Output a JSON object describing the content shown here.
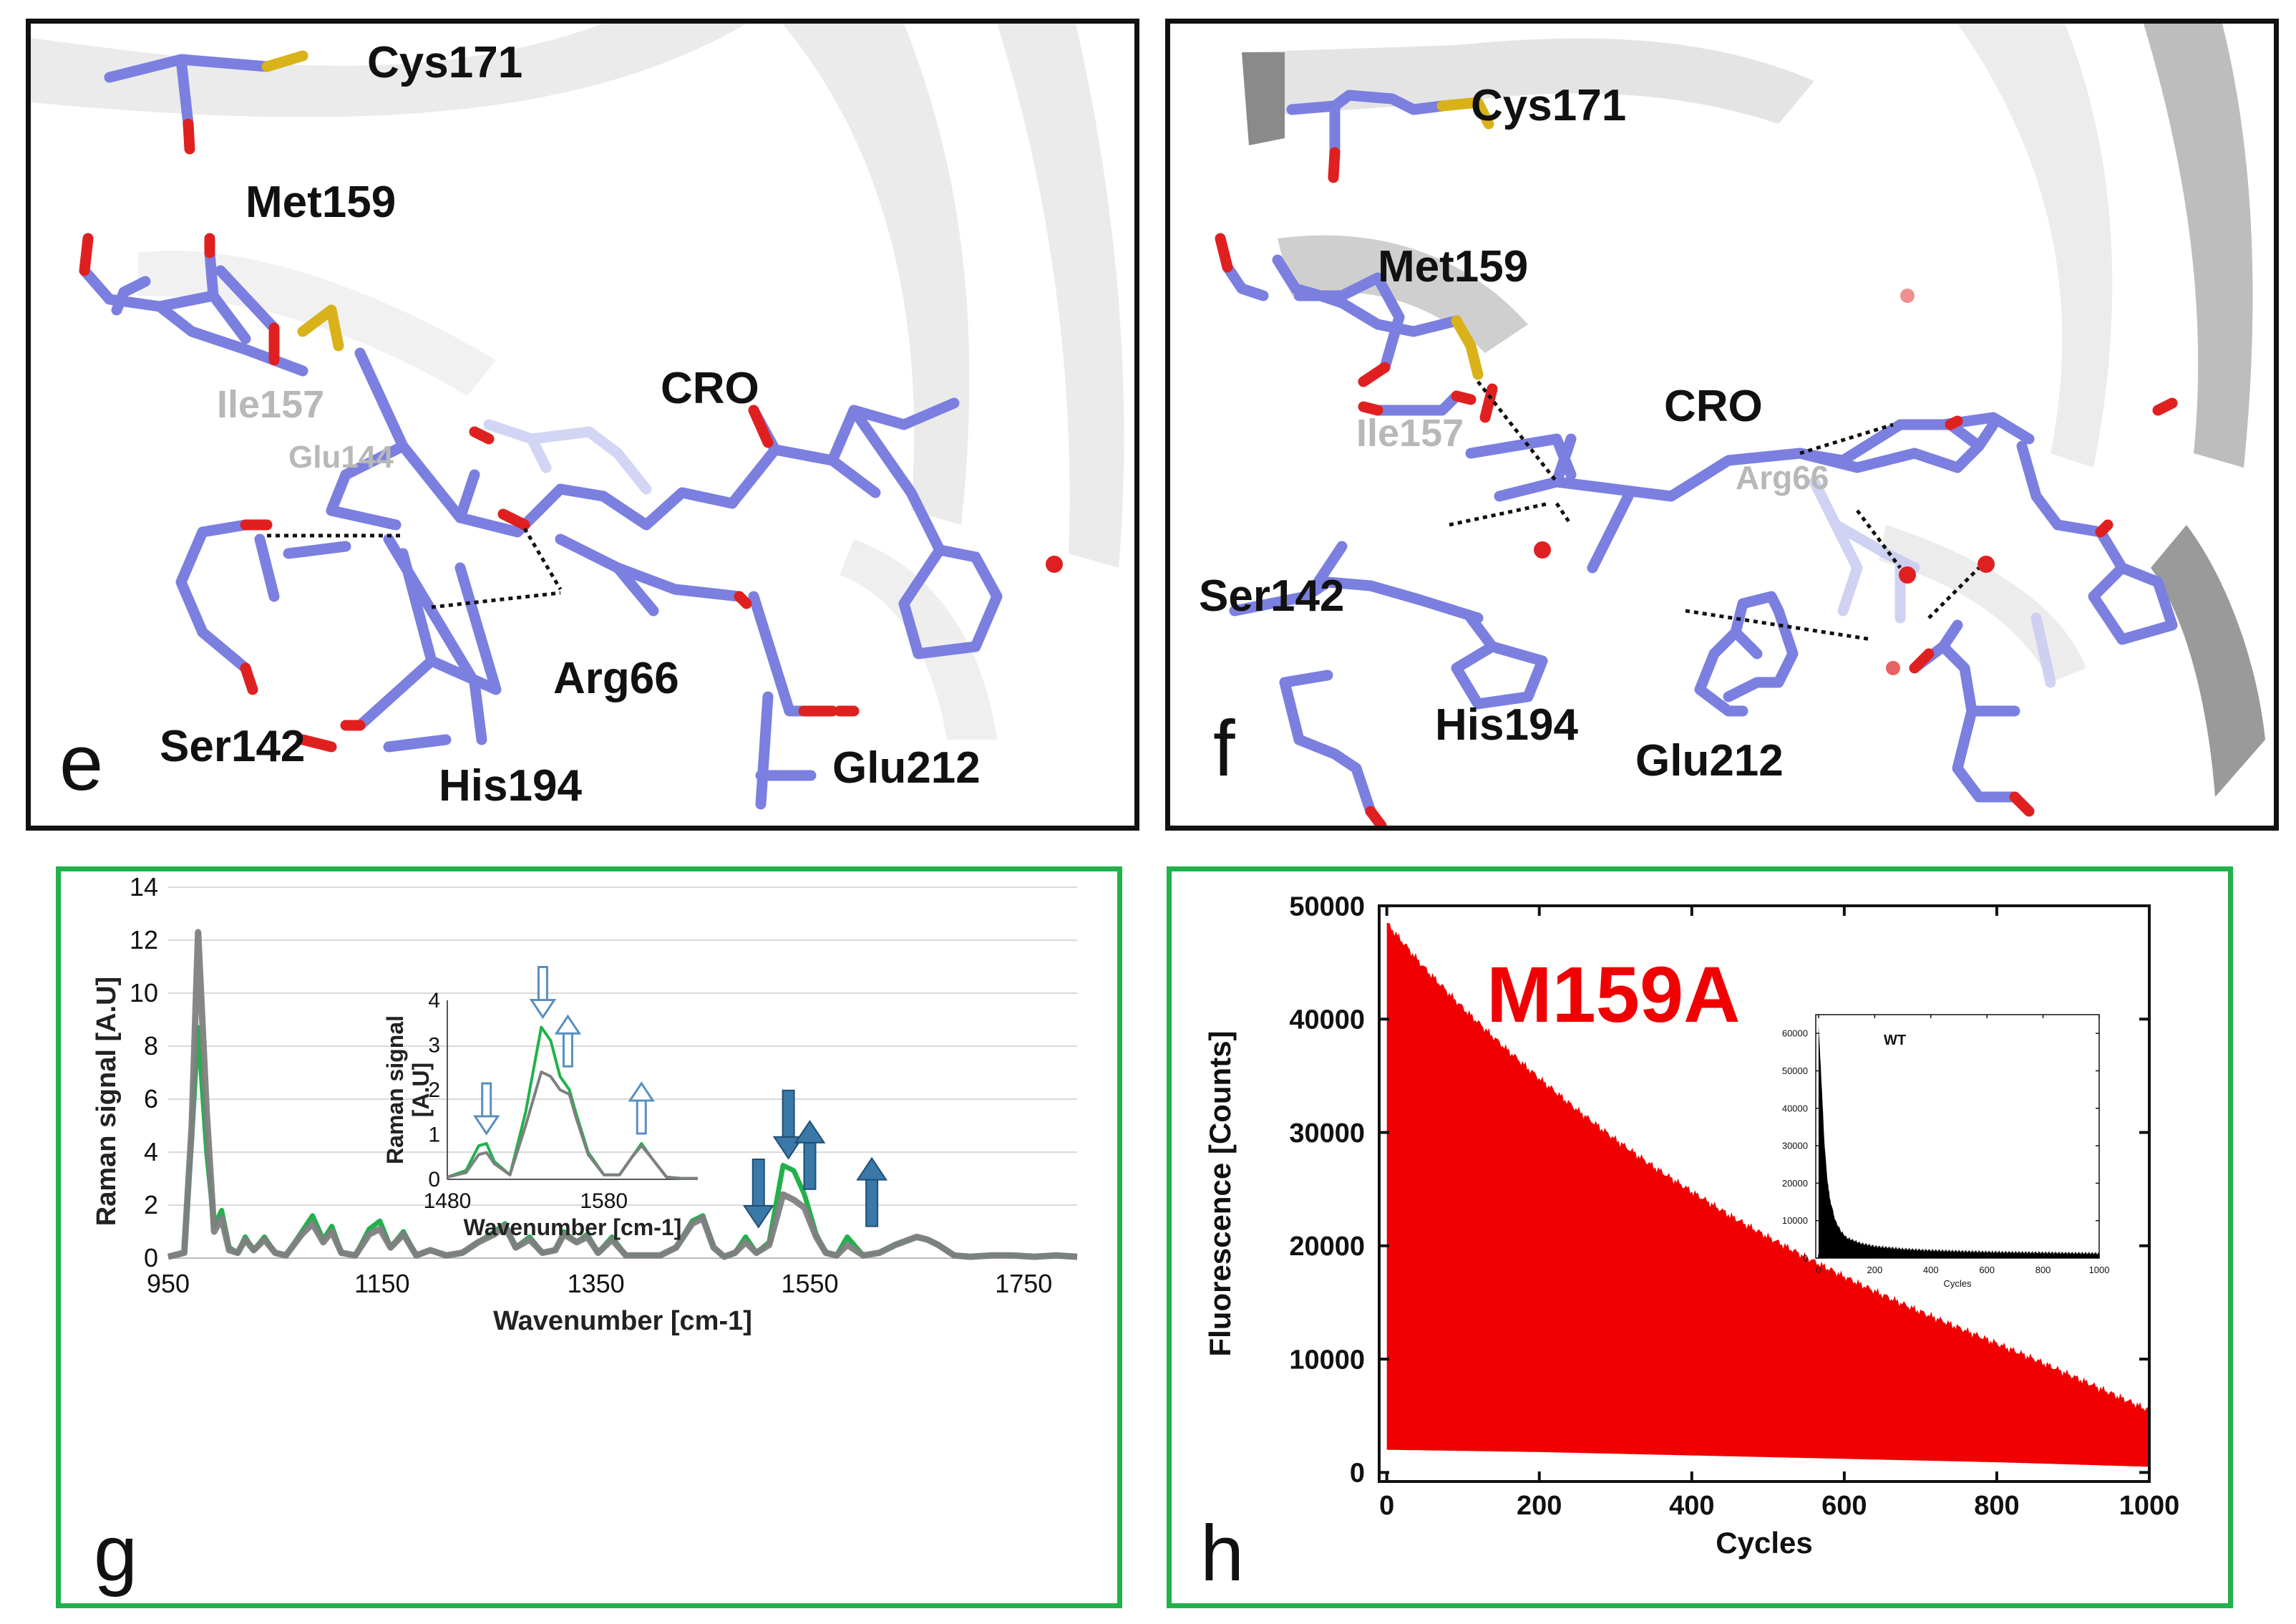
{
  "panels": {
    "e": {
      "letter": "e",
      "labels": {
        "cys171": "Cys171",
        "met159": "Met159",
        "ile157": "Ile157",
        "glu144": "Glu144",
        "cro": "CRO",
        "arg66": "Arg66",
        "ser142": "Ser142",
        "his194": "His194",
        "glu212": "Glu212"
      }
    },
    "f": {
      "letter": "f",
      "labels": {
        "cys171": "Cys171",
        "met159": "Met159",
        "ile157": "Ile157",
        "cro": "CRO",
        "arg66": "Arg66",
        "ser142": "Ser142",
        "his194": "His194",
        "glu212": "Glu212"
      }
    },
    "g": {
      "letter": "g"
    },
    "h": {
      "letter": "h"
    }
  },
  "colors": {
    "stick": "#7b7fe0",
    "oxygen": "#e02020",
    "sulfur": "#d9b21a",
    "green": "#22b14c",
    "gray": "#7f7f7f",
    "arrow": "#3a78a8",
    "red": "#f00000"
  },
  "chart_data": [
    {
      "id": "g-main",
      "type": "line",
      "xlabel": "Wavenumber [cm-1]",
      "ylabel": "Raman signal [A.U]",
      "xlim": [
        950,
        1800
      ],
      "ylim": [
        0,
        14
      ],
      "xticks": [
        950,
        1150,
        1350,
        1550,
        1750
      ],
      "yticks": [
        0,
        2,
        4,
        6,
        8,
        10,
        12,
        14
      ],
      "series": [
        {
          "name": "green",
          "color": "#22b14c",
          "x": [
            950,
            965,
            972,
            978,
            986,
            993,
            1000,
            1007,
            1015,
            1022,
            1030,
            1040,
            1050,
            1060,
            1075,
            1085,
            1095,
            1103,
            1112,
            1125,
            1138,
            1148,
            1158,
            1170,
            1182,
            1195,
            1210,
            1225,
            1240,
            1255,
            1265,
            1275,
            1288,
            1300,
            1312,
            1320,
            1332,
            1342,
            1352,
            1365,
            1378,
            1395,
            1410,
            1425,
            1440,
            1450,
            1460,
            1470,
            1480,
            1490,
            1500,
            1512,
            1525,
            1535,
            1545,
            1556,
            1565,
            1575,
            1585,
            1600,
            1615,
            1630,
            1650,
            1660,
            1670,
            1685,
            1700,
            1720,
            1740,
            1760,
            1780,
            1800
          ],
          "y": [
            0.05,
            0.2,
            4.5,
            8.7,
            4.0,
            1.2,
            1.8,
            0.4,
            0.2,
            0.8,
            0.3,
            0.8,
            0.2,
            0.1,
            1.0,
            1.6,
            0.7,
            1.2,
            0.2,
            0.1,
            1.1,
            1.4,
            0.4,
            1.0,
            0.1,
            0.3,
            0.1,
            0.2,
            0.6,
            1.0,
            1.3,
            0.4,
            0.8,
            0.2,
            0.3,
            1.0,
            0.6,
            0.9,
            0.2,
            0.8,
            0.1,
            0.1,
            0.1,
            0.4,
            1.4,
            1.6,
            0.4,
            0.05,
            0.2,
            0.8,
            0.2,
            0.6,
            3.5,
            3.3,
            2.4,
            0.9,
            0.2,
            0.1,
            0.8,
            0.1,
            0.2,
            0.5,
            0.8,
            0.7,
            0.5,
            0.1,
            0.05,
            0.1,
            0.1,
            0.05,
            0.1,
            0.05
          ]
        },
        {
          "name": "gray",
          "color": "#7f7f7f",
          "x": [
            950,
            965,
            972,
            978,
            986,
            993,
            1000,
            1007,
            1015,
            1022,
            1030,
            1040,
            1050,
            1060,
            1075,
            1085,
            1095,
            1103,
            1112,
            1125,
            1138,
            1148,
            1158,
            1170,
            1182,
            1195,
            1210,
            1225,
            1240,
            1255,
            1265,
            1275,
            1288,
            1300,
            1312,
            1320,
            1332,
            1342,
            1352,
            1365,
            1378,
            1395,
            1410,
            1425,
            1440,
            1450,
            1460,
            1470,
            1480,
            1490,
            1500,
            1512,
            1525,
            1535,
            1545,
            1556,
            1565,
            1575,
            1585,
            1600,
            1615,
            1630,
            1650,
            1660,
            1670,
            1685,
            1700,
            1720,
            1740,
            1760,
            1780,
            1800
          ],
          "y": [
            0.05,
            0.2,
            5.0,
            12.3,
            5.5,
            1.0,
            1.5,
            0.3,
            0.2,
            0.7,
            0.3,
            0.7,
            0.2,
            0.1,
            0.9,
            1.3,
            0.6,
            1.0,
            0.2,
            0.1,
            0.9,
            1.1,
            0.4,
            0.9,
            0.1,
            0.3,
            0.1,
            0.2,
            0.6,
            0.9,
            1.2,
            0.4,
            0.7,
            0.2,
            0.3,
            0.9,
            0.6,
            0.8,
            0.2,
            0.7,
            0.1,
            0.1,
            0.1,
            0.4,
            1.3,
            1.5,
            0.4,
            0.05,
            0.2,
            0.6,
            0.2,
            0.5,
            2.4,
            2.2,
            1.9,
            0.8,
            0.2,
            0.1,
            0.5,
            0.1,
            0.2,
            0.5,
            0.8,
            0.7,
            0.5,
            0.1,
            0.05,
            0.1,
            0.1,
            0.05,
            0.1,
            0.05
          ]
        }
      ],
      "annotations": [
        {
          "x": 1502,
          "dir": "down",
          "style": "filled"
        },
        {
          "x": 1530,
          "dir": "down",
          "style": "filled"
        },
        {
          "x": 1550,
          "dir": "up",
          "style": "filled"
        },
        {
          "x": 1608,
          "dir": "up",
          "style": "filled"
        }
      ]
    },
    {
      "id": "g-inset",
      "type": "line",
      "xlabel": "Wavenumber [cm-1]",
      "ylabel": "Raman signal [A.U]",
      "xlim": [
        1480,
        1640
      ],
      "ylim": [
        0,
        4
      ],
      "xticks": [
        1480,
        1580
      ],
      "yticks": [
        0,
        1,
        2,
        3,
        4
      ],
      "series": [
        {
          "name": "green",
          "color": "#22b14c",
          "x": [
            1480,
            1492,
            1500,
            1505,
            1510,
            1520,
            1530,
            1540,
            1546,
            1552,
            1558,
            1562,
            1570,
            1580,
            1590,
            1598,
            1604,
            1610,
            1620,
            1630,
            1640
          ],
          "y": [
            0.05,
            0.2,
            0.75,
            0.8,
            0.4,
            0.1,
            1.5,
            3.4,
            3.1,
            2.3,
            2.0,
            1.5,
            0.6,
            0.1,
            0.1,
            0.5,
            0.8,
            0.5,
            0.05,
            0.02,
            0.02
          ]
        },
        {
          "name": "gray",
          "color": "#7f7f7f",
          "x": [
            1480,
            1492,
            1500,
            1505,
            1510,
            1520,
            1530,
            1540,
            1546,
            1552,
            1558,
            1562,
            1570,
            1580,
            1590,
            1598,
            1604,
            1610,
            1620,
            1630,
            1640
          ],
          "y": [
            0.05,
            0.15,
            0.55,
            0.6,
            0.35,
            0.1,
            1.2,
            2.4,
            2.3,
            2.0,
            1.9,
            1.4,
            0.55,
            0.1,
            0.1,
            0.5,
            0.75,
            0.5,
            0.05,
            0.02,
            0.02
          ]
        }
      ],
      "annotations": [
        {
          "x": 1505,
          "dir": "down",
          "style": "hollow"
        },
        {
          "x": 1541,
          "dir": "down",
          "style": "hollow"
        },
        {
          "x": 1557,
          "dir": "up",
          "style": "hollow"
        },
        {
          "x": 1604,
          "dir": "up",
          "style": "hollow"
        }
      ]
    },
    {
      "id": "h-main",
      "type": "area",
      "title": "M159A",
      "xlabel": "Cycles",
      "ylabel": "Fluorescence [Counts]",
      "xlim": [
        -10,
        1000
      ],
      "ylim": [
        -800,
        50000
      ],
      "xticks": [
        0,
        200,
        400,
        600,
        800,
        1000
      ],
      "yticks": [
        0,
        10000,
        20000,
        30000,
        40000,
        50000
      ],
      "color": "#f00000",
      "upper_envelope": {
        "x": [
          0,
          50,
          100,
          150,
          200,
          250,
          300,
          350,
          400,
          450,
          500,
          550,
          600,
          650,
          700,
          750,
          800,
          850,
          900,
          950,
          1000
        ],
        "y": [
          48500,
          44500,
          41000,
          37800,
          34800,
          32000,
          29400,
          27000,
          24800,
          22700,
          20800,
          19000,
          17300,
          15700,
          14200,
          12800,
          11400,
          10000,
          8500,
          7000,
          5500
        ]
      },
      "lower_envelope": {
        "x": [
          0,
          200,
          400,
          600,
          800,
          1000
        ],
        "y": [
          2000,
          1800,
          1500,
          1200,
          900,
          500
        ]
      }
    },
    {
      "id": "h-inset",
      "type": "area",
      "title": "WT",
      "xlabel": "Cycles",
      "ylabel": "",
      "xlim": [
        -10,
        1000
      ],
      "ylim": [
        0,
        65000
      ],
      "xticks": [
        0,
        200,
        400,
        600,
        800,
        1000
      ],
      "yticks": [
        0,
        10000,
        20000,
        30000,
        40000,
        50000,
        60000
      ],
      "color": "#000000",
      "upper_envelope": {
        "x": [
          0,
          10,
          20,
          30,
          40,
          60,
          80,
          100,
          150,
          200,
          300,
          400,
          600,
          800,
          1000
        ],
        "y": [
          62000,
          48000,
          32000,
          22000,
          16000,
          10000,
          7200,
          5500,
          4000,
          3200,
          2500,
          2100,
          1700,
          1500,
          1300
        ]
      },
      "lower_envelope": {
        "x": [
          0,
          1000
        ],
        "y": [
          0,
          0
        ]
      }
    }
  ]
}
